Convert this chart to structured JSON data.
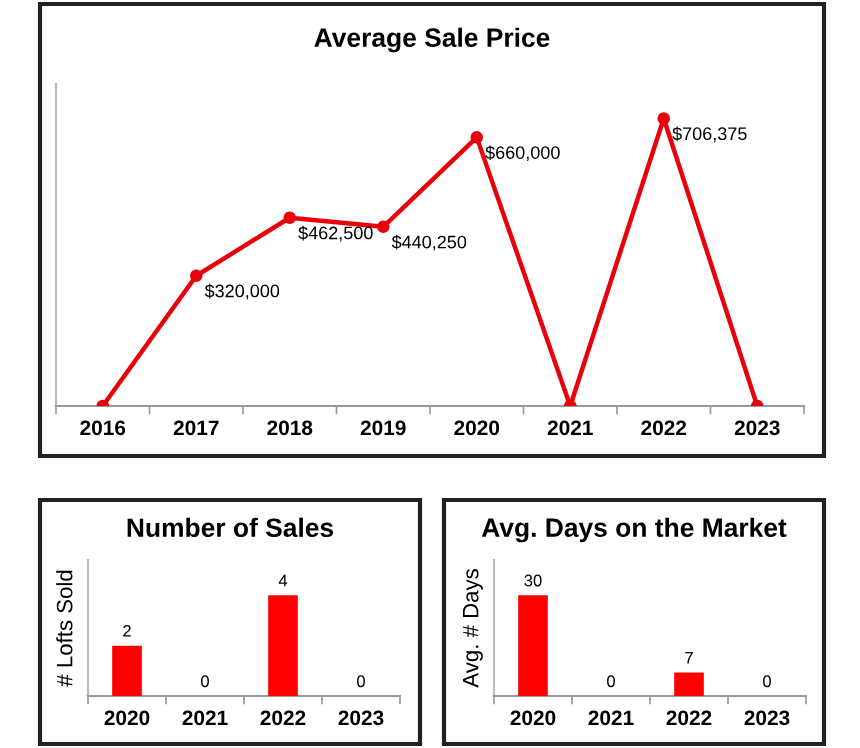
{
  "chart_data": [
    {
      "type": "line",
      "title": "Average Sale Price",
      "categories": [
        "2016",
        "2017",
        "2018",
        "2019",
        "2020",
        "2021",
        "2022",
        "2023"
      ],
      "color": "#e8000b",
      "marker": "circle",
      "values": [
        0,
        320000,
        462500,
        440250,
        660000,
        0,
        706375,
        0
      ],
      "value_labels": [
        null,
        "$320,000",
        "$462,500",
        "$440,250",
        "$660,000",
        null,
        "$706,375",
        null
      ],
      "tick_labels": "x",
      "grid": false,
      "legend": false
    },
    {
      "type": "bar",
      "title": "Number of Sales",
      "ylabel": "# Lofts Sold",
      "categories": [
        "2020",
        "2021",
        "2022",
        "2023"
      ],
      "color": "#ff0000",
      "values": [
        2,
        0,
        4,
        0
      ],
      "data_labels": true,
      "tick_labels": "x",
      "grid": false,
      "legend": false
    },
    {
      "type": "bar",
      "title": "Avg. Days on the Market",
      "ylabel": "Avg. # Days",
      "categories": [
        "2020",
        "2021",
        "2022",
        "2023"
      ],
      "color": "#ff0000",
      "values": [
        30,
        0,
        7,
        0
      ],
      "data_labels": true,
      "tick_labels": "x",
      "grid": false,
      "legend": false
    }
  ]
}
